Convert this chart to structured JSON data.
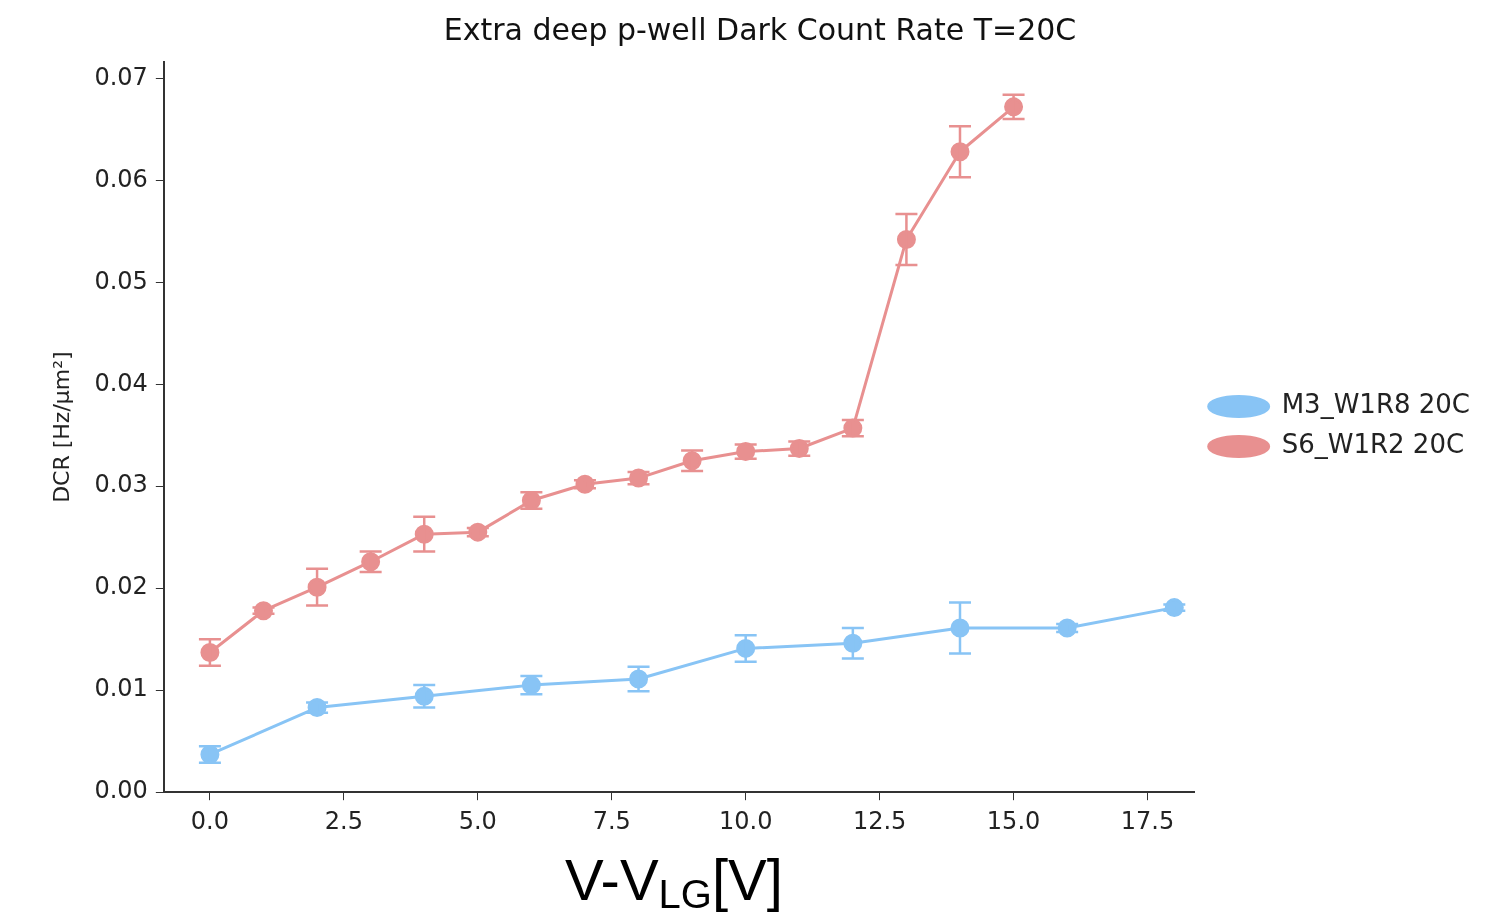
{
  "chart_data": {
    "type": "line",
    "title": "Extra deep p-well Dark Count Rate T=20C",
    "xlabel": "V-V$_{LG}$[V]",
    "ylabel": "DCR [Hz/µm²]",
    "xlim": [
      -0.86,
      18.38
    ],
    "xticks": [
      {
        "value": 0,
        "label": "0.0"
      },
      {
        "value": 2.5,
        "label": "2.5"
      },
      {
        "value": 5,
        "label": "5.0"
      },
      {
        "value": 7.5,
        "label": "7.5"
      },
      {
        "value": 10,
        "label": "10.0"
      },
      {
        "value": 12.5,
        "label": "12.5"
      },
      {
        "value": 15,
        "label": "15.0"
      },
      {
        "value": 17.5,
        "label": "17.5"
      }
    ],
    "ylim": [
      0,
      0.0716
    ],
    "yticks": [
      {
        "value": 0,
        "label": "0.00"
      },
      {
        "value": 0.01,
        "label": "0.01"
      },
      {
        "value": 0.02,
        "label": "0.02"
      },
      {
        "value": 0.03,
        "label": "0.03"
      },
      {
        "value": 0.04,
        "label": "0.04"
      },
      {
        "value": 0.05,
        "label": "0.05"
      },
      {
        "value": 0.06,
        "label": "0.06"
      },
      {
        "value": 0.07,
        "label": "0.07"
      }
    ],
    "grid": false,
    "legend": "right",
    "marker": "circle",
    "line_style": "solid",
    "series": [
      {
        "name": "M3_W1R8 20C",
        "color": "#88c4f5",
        "x": [
          0,
          2,
          4,
          6,
          8,
          10,
          12,
          14,
          16,
          18
        ],
        "values": [
          0.0037,
          0.0083,
          0.0094,
          0.0105,
          0.0111,
          0.0141,
          0.0146,
          0.0161,
          0.0161,
          0.0181
        ],
        "errors": [
          0.0008,
          0.0005,
          0.0011,
          0.0009,
          0.0012,
          0.0013,
          0.0015,
          0.0025,
          0.0004,
          0.0003
        ]
      },
      {
        "name": "S6_W1R2 20C",
        "color": "#e89090",
        "x": [
          0,
          1,
          2,
          3,
          4,
          5,
          6,
          7,
          8,
          9,
          10,
          11,
          12,
          13,
          14,
          15
        ],
        "values": [
          0.0137,
          0.0178,
          0.0201,
          0.0226,
          0.0253,
          0.0255,
          0.0286,
          0.0302,
          0.0308,
          0.0325,
          0.0334,
          0.0337,
          0.0357,
          0.0542,
          0.0628,
          0.0672
        ],
        "errors": [
          0.0013,
          0.0003,
          0.0018,
          0.001,
          0.0017,
          0.0004,
          0.0008,
          0.0004,
          0.0006,
          0.001,
          0.0007,
          0.0007,
          0.0008,
          0.0025,
          0.0025,
          0.0012
        ]
      }
    ]
  }
}
